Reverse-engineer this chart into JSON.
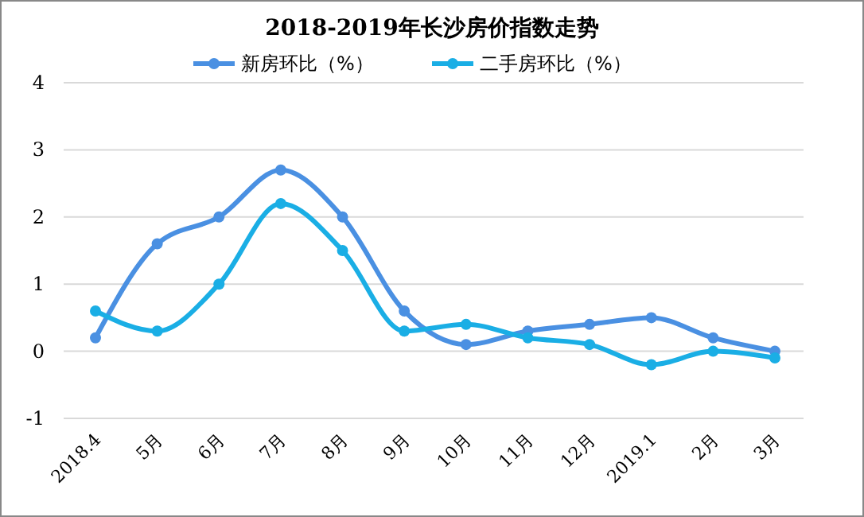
{
  "chart_data": {
    "type": "line",
    "title": "2018-2019年长沙房价指数走势",
    "categories": [
      "2018.4",
      "5月",
      "6月",
      "7月",
      "8月",
      "9月",
      "10月",
      "11月",
      "12月",
      "2019.1",
      "2月",
      "3月"
    ],
    "series": [
      {
        "name": "新房环比（%）",
        "color": "#4a90e2",
        "values": [
          0.2,
          1.6,
          2.0,
          2.7,
          2.0,
          0.6,
          0.1,
          0.3,
          0.4,
          0.5,
          0.2,
          0.0
        ]
      },
      {
        "name": "二手房环比（%）",
        "color": "#1aaee5",
        "values": [
          0.6,
          0.3,
          1.0,
          2.2,
          1.5,
          0.3,
          0.4,
          0.2,
          0.1,
          -0.2,
          0.0,
          -0.1
        ]
      }
    ],
    "ylim": [
      -1,
      4
    ],
    "yticks": [
      -1,
      0,
      1,
      2,
      3,
      4
    ],
    "grid": "y",
    "legend": "top",
    "marker": "circle",
    "line_style": "solid"
  }
}
